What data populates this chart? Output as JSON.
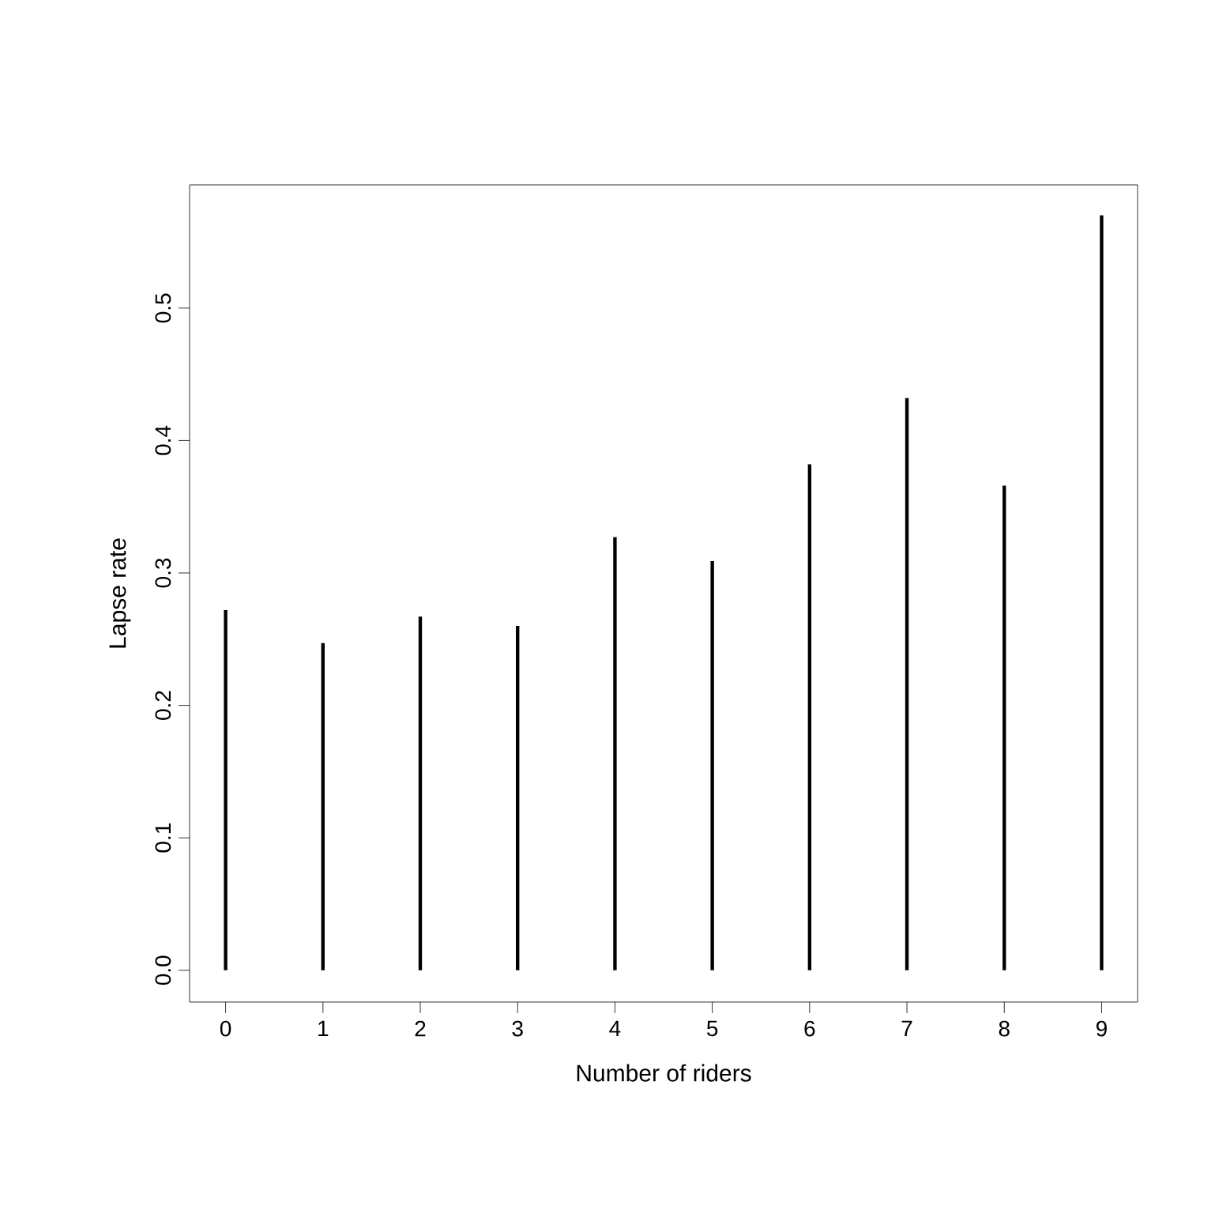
{
  "chart_data": {
    "type": "bar",
    "xlabel": "Number of riders",
    "ylabel": "Lapse rate",
    "x": [
      0,
      1,
      2,
      3,
      4,
      5,
      6,
      7,
      8,
      9
    ],
    "values": [
      0.272,
      0.247,
      0.267,
      0.26,
      0.327,
      0.309,
      0.382,
      0.432,
      0.366,
      0.57
    ],
    "color": "#000000",
    "xlim": [
      -0.37,
      9.37
    ],
    "xticks": [
      0,
      1,
      2,
      3,
      4,
      5,
      6,
      7,
      8,
      9
    ],
    "ylim": [
      -0.024,
      0.593
    ],
    "yticks": [
      {
        "value": 0,
        "label": "0.0"
      },
      {
        "value": 0.1,
        "label": "0.1"
      },
      {
        "value": 0.2,
        "label": "0.2"
      },
      {
        "value": 0.3,
        "label": "0.3"
      },
      {
        "value": 0.4,
        "label": "0.4"
      },
      {
        "value": 0.5,
        "label": "0.5"
      }
    ]
  }
}
